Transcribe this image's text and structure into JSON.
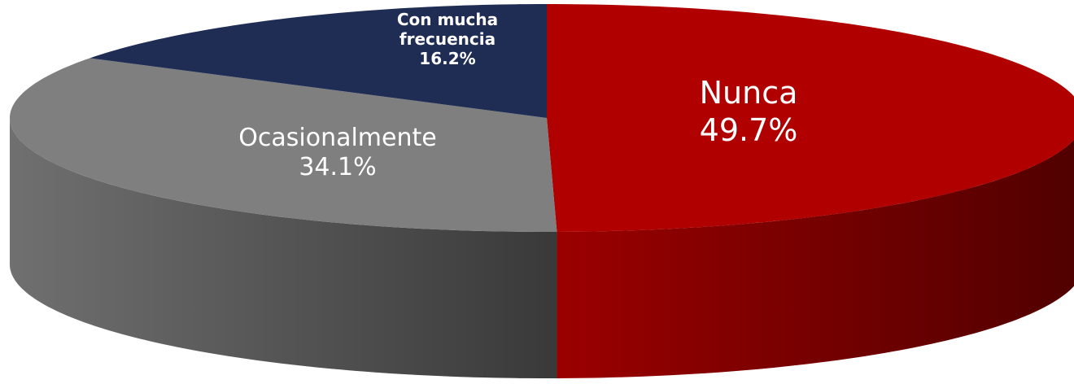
{
  "chart_data": {
    "type": "pie3d",
    "categories": [
      "Nunca",
      "Ocasionalmente",
      "Con mucha frecuencia"
    ],
    "values": [
      49.7,
      34.1,
      16.2
    ],
    "value_labels": [
      "49.7%",
      "34.1%",
      "16.2%"
    ],
    "colors": [
      "#b00000",
      "#7f7f7f",
      "#1f2d55"
    ]
  }
}
